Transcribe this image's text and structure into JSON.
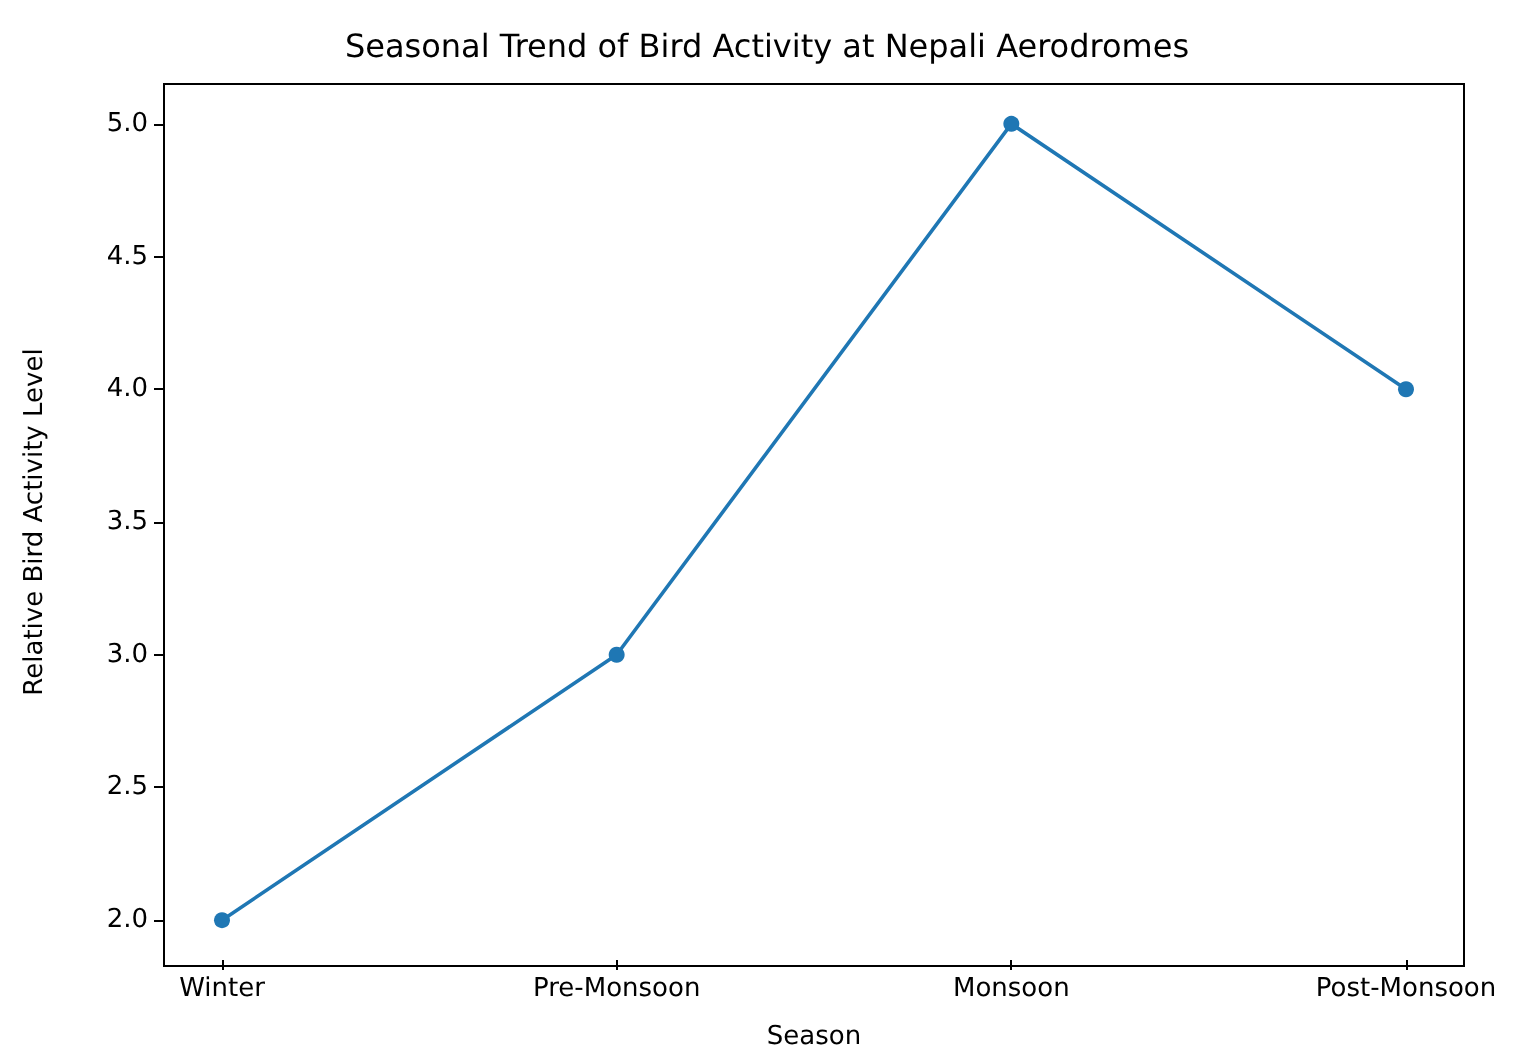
{
  "chart_data": {
    "type": "line",
    "title": "Seasonal Trend of Bird Activity at Nepali Aerodromes",
    "xlabel": "Season",
    "ylabel": "Relative Bird Activity Level",
    "categories": [
      "Winter",
      "Pre-Monsoon",
      "Monsoon",
      "Post-Monsoon"
    ],
    "series": [
      {
        "color": "#1f77b4",
        "values": [
          2,
          3,
          5,
          4
        ]
      }
    ],
    "ylim": [
      1.85,
      5.15
    ],
    "yticks": [
      {
        "value": 2,
        "label": "2.0"
      },
      {
        "value": 2.5,
        "label": "2.5"
      },
      {
        "value": 3,
        "label": "3.0"
      },
      {
        "value": 3.5,
        "label": "3.5"
      },
      {
        "value": 4,
        "label": "4.0"
      },
      {
        "value": 4.5,
        "label": "4.5"
      },
      {
        "value": 5,
        "label": "5.0"
      }
    ],
    "marker": "circle",
    "line_style": "solid",
    "grid": false
  }
}
